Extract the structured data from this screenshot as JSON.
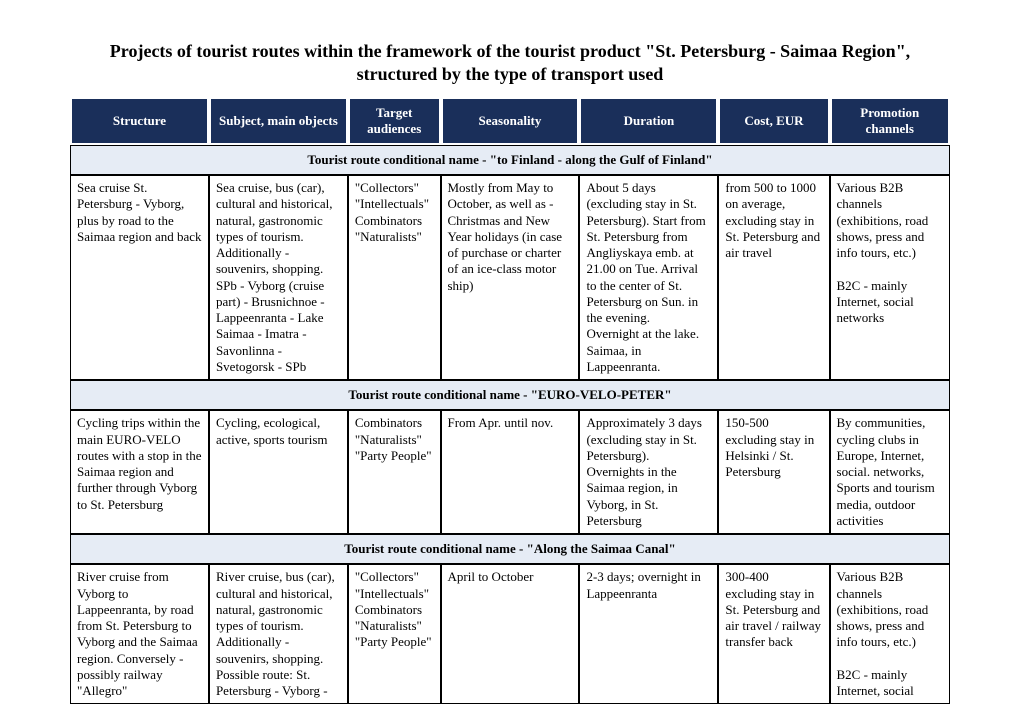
{
  "title": "Projects of tourist routes within the framework of the tourist product \"St. Petersburg - Saimaa Region\", structured by the type of transport used",
  "columns": [
    "Structure",
    "Subject, main objects",
    "Target audiences",
    "Seasonality",
    "Duration",
    "Cost, EUR",
    "Promotion channels"
  ],
  "section1": {
    "header": "Tourist route conditional name - \"to Finland - along the Gulf of Finland\"",
    "structure": "Sea cruise St. Petersburg - Vyborg, plus by road to the Saimaa region and back",
    "subject": "Sea cruise, bus (car), cultural and historical, natural, gastronomic types of tourism. Additionally - souvenirs, shopping.\nSPb - Vyborg (cruise part) - Brusnichnoe - Lappeenranta - Lake Saimaa - Imatra - Savonlinna - Svetogorsk - SPb",
    "target": "\"Collectors\"\n\"Intellectuals\"\nCombinators\n\"Naturalists\"",
    "seasonality": "Mostly from May to October, as well as - Christmas and New Year holidays (in case of purchase or charter of an ice-class motor ship)",
    "duration": "About 5 days (excluding stay in St. Petersburg). Start from St. Petersburg from Angliyskaya emb. at 21.00 on Tue. Arrival to the center of St. Petersburg on Sun. in the evening.\nOvernight at the lake. Saimaa, in Lappeenranta.",
    "cost": "from 500 to 1000 on average, excluding stay in St. Petersburg and air travel",
    "promotion": "Various B2B channels (exhibitions, road shows, press and info tours, etc.)\n\nB2C - mainly Internet, social networks"
  },
  "section2": {
    "header": "Tourist route conditional name - \"EURO-VELO-PETER\"",
    "structure": "Cycling trips within the main EURO-VELO routes with a stop in the Saimaa region and further through Vyborg to St. Petersburg",
    "subject": "Cycling, ecological, active, sports tourism",
    "target": "Combinators\n\"Naturalists\"\n\"Party People\"",
    "seasonality": "From Apr. until nov.",
    "duration": "Approximately 3 days (excluding stay in St. Petersburg).\nOvernights in the Saimaa region, in Vyborg, in St. Petersburg",
    "cost": "150-500 excluding stay in Helsinki / St. Petersburg",
    "promotion": "By communities, cycling clubs in Europe, Internet, social. networks, Sports and tourism media, outdoor activities"
  },
  "section3": {
    "header": "Tourist route conditional name - \"Along the Saimaa Canal\"",
    "structure": "River cruise from Vyborg to Lappeenranta, by road from St. Petersburg to Vyborg and the Saimaa region. Conversely - possibly railway \"Allegro\"",
    "subject": "River cruise, bus (car), cultural and historical, natural, gastronomic types of tourism. Additionally - souvenirs, shopping.\nPossible route: St. Petersburg - Vyborg -",
    "target": "\"Collectors\"\n\"Intellectuals\"\nCombinators\n\"Naturalists\"\n\"Party People\"",
    "seasonality": "April to October",
    "duration": "2-3 days; overnight in Lappeenranta",
    "cost": "300-400 excluding stay in St. Petersburg and air travel / railway transfer back",
    "promotion": "Various B2B channels (exhibitions, road shows, press and info tours, etc.)\n\nB2C - mainly Internet, social"
  }
}
